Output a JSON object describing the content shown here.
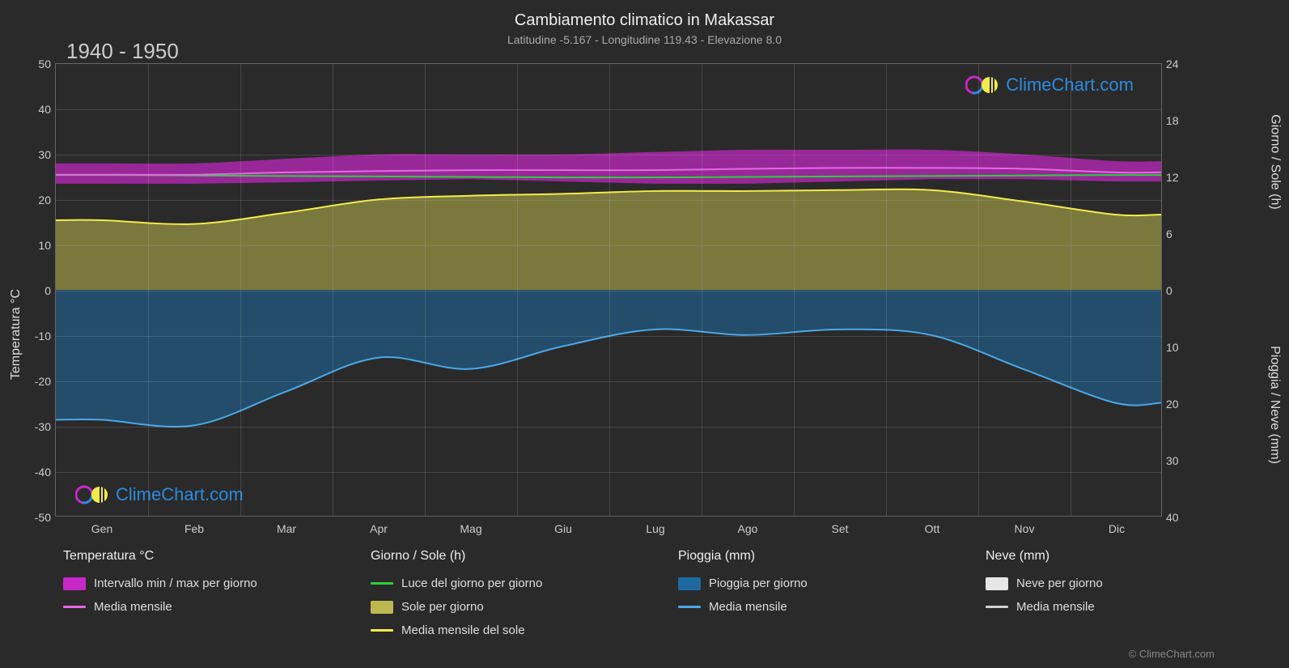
{
  "title": "Cambiamento climatico in Makassar",
  "subtitle": "Latitudine -5.167 - Longitudine 119.43 - Elevazione 8.0",
  "period": "1940 - 1950",
  "copyright": "© ClimeChart.com",
  "logo_text": "ClimeChart.com",
  "chart": {
    "background_color": "#2a2a2a",
    "grid_color": "rgba(200,200,200,0.18)",
    "border_color": "#666",
    "x_categories": [
      "Gen",
      "Feb",
      "Mar",
      "Apr",
      "Mag",
      "Giu",
      "Lug",
      "Ago",
      "Set",
      "Ott",
      "Nov",
      "Dic"
    ],
    "left_axis": {
      "label": "Temperatura °C",
      "min": -50,
      "max": 50,
      "step": 10
    },
    "right_top_axis": {
      "label": "Giorno / Sole (h)",
      "min": 0,
      "max": 24,
      "step": 6,
      "maps_to_left": {
        "from": [
          0,
          24
        ],
        "to": [
          0,
          50
        ]
      }
    },
    "right_bot_axis": {
      "label": "Pioggia / Neve (mm)",
      "min": 0,
      "max": 40,
      "step": 10,
      "maps_to_left": {
        "from": [
          0,
          40
        ],
        "to": [
          0,
          -50
        ]
      }
    },
    "series": {
      "temp_band": {
        "color": "#c828c8",
        "min": [
          23.5,
          23.5,
          23.8,
          24.2,
          24.5,
          24.0,
          23.5,
          23.5,
          24.0,
          24.5,
          24.5,
          24.0
        ],
        "max": [
          28,
          28,
          29,
          30,
          30,
          30,
          30.5,
          31,
          31,
          31,
          30,
          28.5
        ],
        "opacity": 0.7
      },
      "temp_mean": {
        "color": "#e668e6",
        "width": 2,
        "values": [
          25.5,
          25.5,
          26,
          26.3,
          26.5,
          26.5,
          26.5,
          26.8,
          27,
          27,
          26.8,
          26
        ]
      },
      "daylight": {
        "color": "#2bd13a",
        "width": 2,
        "values_h": [
          12.2,
          12.15,
          12.1,
          12.05,
          12.0,
          11.95,
          11.95,
          12.0,
          12.05,
          12.1,
          12.15,
          12.2
        ]
      },
      "sun_band": {
        "color": "#bdb84f",
        "opacity": 0.55,
        "values_h": [
          7.4,
          7.0,
          8.2,
          9.6,
          10.0,
          10.2,
          10.5,
          10.5,
          10.6,
          10.6,
          9.4,
          8.0
        ]
      },
      "sun_mean": {
        "color": "#f2ec4a",
        "width": 2,
        "values_h": [
          7.4,
          7.0,
          8.2,
          9.6,
          10.0,
          10.2,
          10.5,
          10.5,
          10.6,
          10.6,
          9.4,
          8.0
        ]
      },
      "rain_band": {
        "color": "#1e6aa0",
        "opacity": 0.55,
        "values_mm": [
          23,
          24,
          18,
          12,
          14,
          10,
          7,
          8,
          7,
          8,
          14,
          20
        ]
      },
      "rain_mean": {
        "color": "#4aa8e8",
        "width": 2,
        "values_mm": [
          23,
          24,
          18,
          12,
          14,
          10,
          7,
          8,
          7,
          8,
          14,
          20
        ]
      },
      "snow_band": {
        "color": "#e6e6e6",
        "opacity": 0.4,
        "values_mm": [
          0,
          0,
          0,
          0,
          0,
          0,
          0,
          0,
          0,
          0,
          0,
          0
        ]
      },
      "snow_mean": {
        "color": "#d0d0d0",
        "width": 2,
        "values_mm": [
          0,
          0,
          0,
          0,
          0,
          0,
          0,
          0,
          0,
          0,
          0,
          0
        ]
      }
    }
  },
  "legend": {
    "col1": {
      "title": "Temperatura °C",
      "items": [
        {
          "key": "temp_band",
          "type": "box",
          "color": "#c828c8",
          "label": "Intervallo min / max per giorno"
        },
        {
          "key": "temp_mean",
          "type": "line",
          "color": "#e668e6",
          "label": "Media mensile"
        }
      ]
    },
    "col2": {
      "title": "Giorno / Sole (h)",
      "items": [
        {
          "key": "daylight",
          "type": "line",
          "color": "#2bd13a",
          "label": "Luce del giorno per giorno"
        },
        {
          "key": "sun_band",
          "type": "box",
          "color": "#bdb84f",
          "label": "Sole per giorno"
        },
        {
          "key": "sun_mean",
          "type": "line",
          "color": "#f2ec4a",
          "label": "Media mensile del sole"
        }
      ]
    },
    "col3": {
      "title": "Pioggia (mm)",
      "items": [
        {
          "key": "rain_band",
          "type": "box",
          "color": "#1e6aa0",
          "label": "Pioggia per giorno"
        },
        {
          "key": "rain_mean",
          "type": "line",
          "color": "#4aa8e8",
          "label": "Media mensile"
        }
      ]
    },
    "col4": {
      "title": "Neve (mm)",
      "items": [
        {
          "key": "snow_band",
          "type": "box",
          "color": "#e6e6e6",
          "label": "Neve per giorno"
        },
        {
          "key": "snow_mean",
          "type": "line",
          "color": "#d0d0d0",
          "label": "Media mensile"
        }
      ]
    }
  }
}
